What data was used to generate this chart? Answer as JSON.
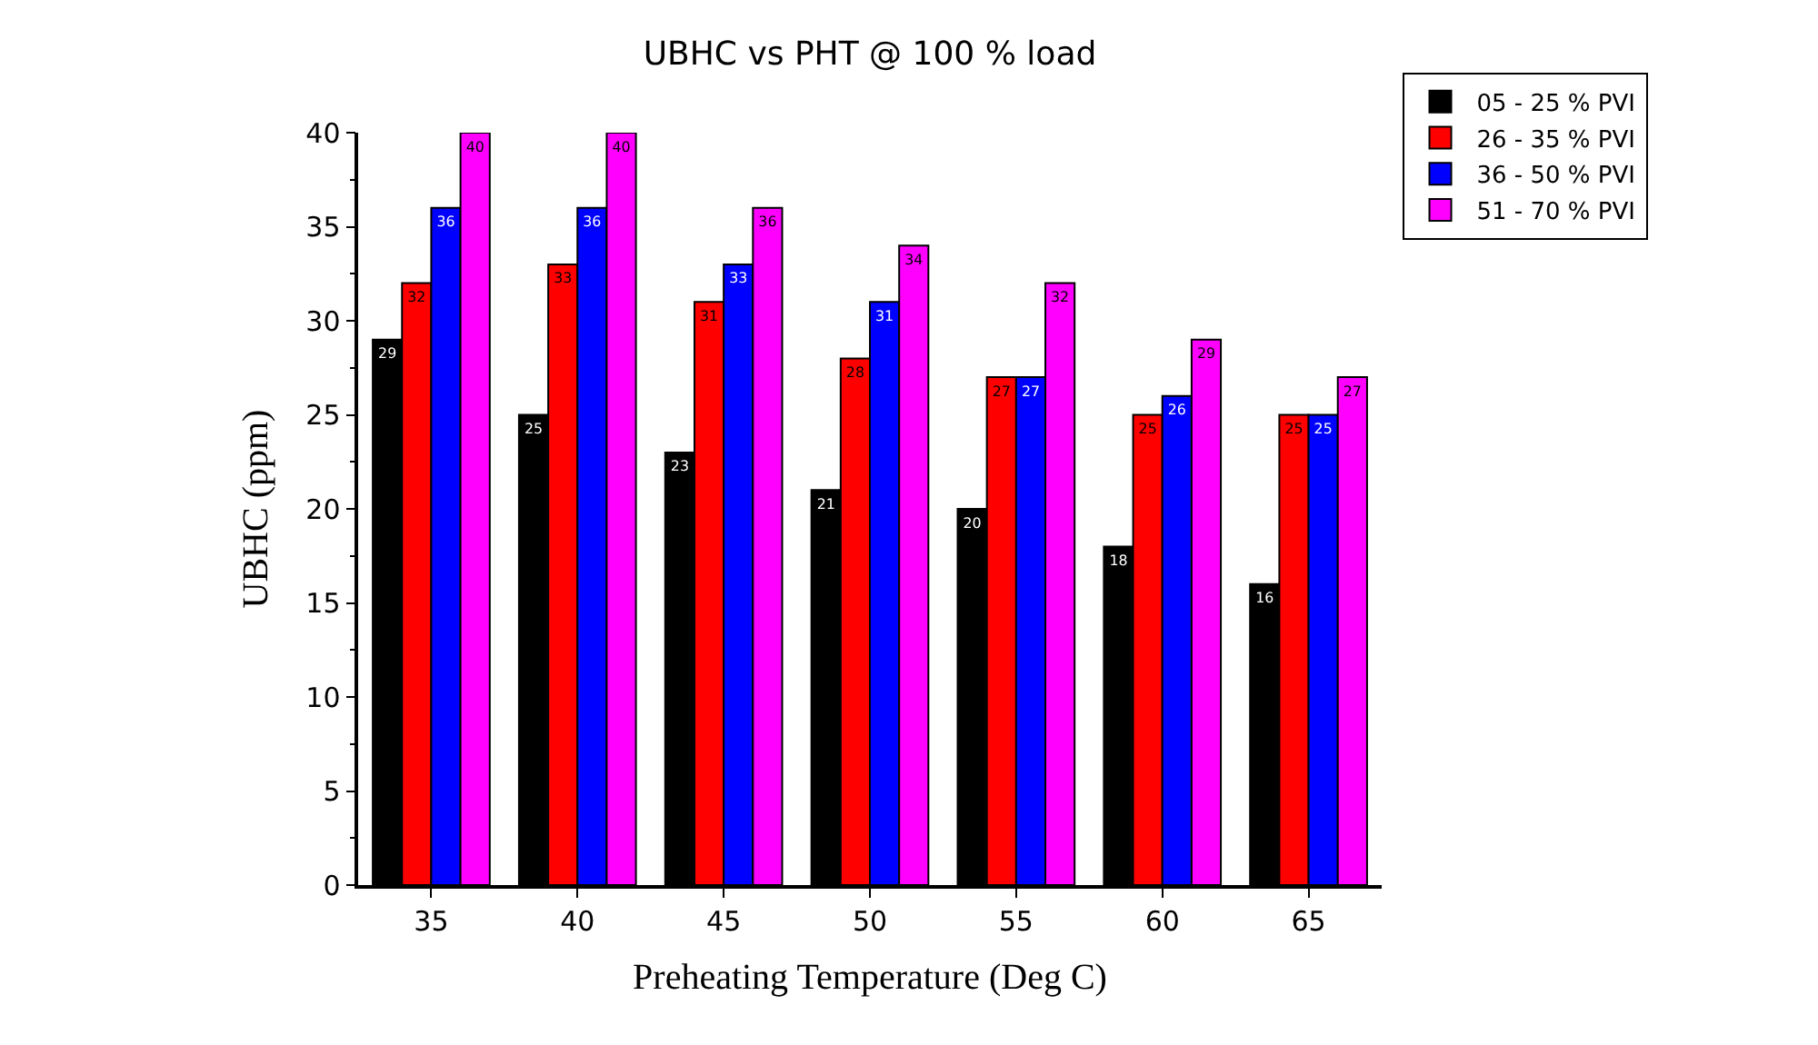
{
  "chart_data": {
    "type": "bar",
    "title": "UBHC vs PHT @ 100 % load",
    "xlabel": "Preheating Temperature (Deg C)",
    "ylabel": "UBHC (ppm)",
    "categories": [
      "35",
      "40",
      "45",
      "50",
      "55",
      "60",
      "65"
    ],
    "series": [
      {
        "name": "05 - 25 % PVI",
        "color": "#000000",
        "values": [
          29,
          25,
          23,
          21,
          20,
          18,
          16
        ]
      },
      {
        "name": "26 - 35 % PVI",
        "color": "#ff0000",
        "values": [
          32,
          33,
          31,
          28,
          27,
          25,
          25
        ]
      },
      {
        "name": "36 - 50 % PVI",
        "color": "#0000ff",
        "values": [
          36,
          36,
          33,
          31,
          27,
          26,
          25
        ]
      },
      {
        "name": "51 - 70 % PVI",
        "color": "#ff00ff",
        "values": [
          40,
          40,
          36,
          34,
          32,
          29,
          27
        ]
      }
    ],
    "ylim": [
      0,
      40
    ],
    "yticks": [
      0,
      5,
      10,
      15,
      20,
      25,
      30,
      35,
      40
    ],
    "data_labels": true,
    "legend": "top right"
  }
}
